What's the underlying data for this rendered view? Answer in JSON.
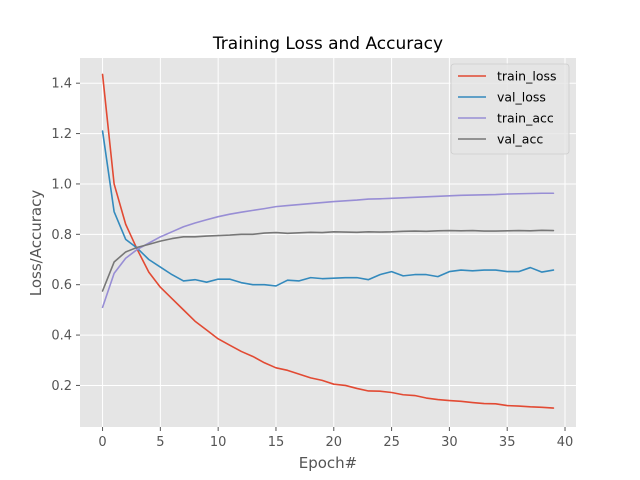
{
  "chart_data": {
    "type": "line",
    "title": "Training Loss and Accuracy",
    "xlabel": "Epoch#",
    "ylabel": "Loss/Accuracy",
    "xlim": [
      -1.95,
      40.95
    ],
    "ylim": [
      0.035,
      1.5
    ],
    "x_ticks": [
      0,
      5,
      10,
      15,
      20,
      25,
      30,
      35,
      40
    ],
    "y_ticks": [
      0.2,
      0.4,
      0.6,
      0.8,
      1.0,
      1.2,
      1.4
    ],
    "grid": true,
    "legend_position": "top-right",
    "x": [
      0,
      1,
      2,
      3,
      4,
      5,
      6,
      7,
      8,
      9,
      10,
      11,
      12,
      13,
      14,
      15,
      16,
      17,
      18,
      19,
      20,
      21,
      22,
      23,
      24,
      25,
      26,
      27,
      28,
      29,
      30,
      31,
      32,
      33,
      34,
      35,
      36,
      37,
      38,
      39
    ],
    "series": [
      {
        "name": "train_loss",
        "color": "#E24A33",
        "values": [
          1.435,
          1.0,
          0.84,
          0.74,
          0.65,
          0.59,
          0.545,
          0.5,
          0.455,
          0.42,
          0.385,
          0.36,
          0.335,
          0.315,
          0.29,
          0.27,
          0.26,
          0.245,
          0.23,
          0.22,
          0.205,
          0.2,
          0.188,
          0.178,
          0.177,
          0.172,
          0.163,
          0.16,
          0.15,
          0.144,
          0.14,
          0.137,
          0.132,
          0.128,
          0.127,
          0.12,
          0.118,
          0.115,
          0.113,
          0.11
        ]
      },
      {
        "name": "val_loss",
        "color": "#348ABD",
        "values": [
          1.21,
          0.89,
          0.78,
          0.745,
          0.7,
          0.67,
          0.64,
          0.615,
          0.62,
          0.61,
          0.622,
          0.622,
          0.608,
          0.6,
          0.6,
          0.595,
          0.618,
          0.615,
          0.628,
          0.624,
          0.626,
          0.628,
          0.628,
          0.62,
          0.64,
          0.652,
          0.635,
          0.64,
          0.64,
          0.632,
          0.652,
          0.658,
          0.655,
          0.658,
          0.658,
          0.652,
          0.652,
          0.668,
          0.65,
          0.658
        ]
      },
      {
        "name": "train_acc",
        "color": "#988ED5",
        "values": [
          0.51,
          0.645,
          0.705,
          0.74,
          0.765,
          0.79,
          0.81,
          0.83,
          0.845,
          0.858,
          0.87,
          0.88,
          0.888,
          0.895,
          0.902,
          0.91,
          0.914,
          0.918,
          0.922,
          0.926,
          0.93,
          0.933,
          0.936,
          0.94,
          0.941,
          0.943,
          0.945,
          0.947,
          0.949,
          0.951,
          0.953,
          0.955,
          0.956,
          0.957,
          0.958,
          0.96,
          0.961,
          0.962,
          0.963,
          0.963
        ]
      },
      {
        "name": "val_acc",
        "color": "#777777",
        "values": [
          0.575,
          0.69,
          0.73,
          0.748,
          0.76,
          0.773,
          0.783,
          0.79,
          0.79,
          0.793,
          0.795,
          0.797,
          0.8,
          0.8,
          0.805,
          0.807,
          0.804,
          0.806,
          0.808,
          0.807,
          0.81,
          0.809,
          0.808,
          0.81,
          0.809,
          0.81,
          0.812,
          0.813,
          0.812,
          0.814,
          0.815,
          0.814,
          0.815,
          0.813,
          0.813,
          0.814,
          0.815,
          0.814,
          0.816,
          0.815
        ]
      }
    ]
  }
}
